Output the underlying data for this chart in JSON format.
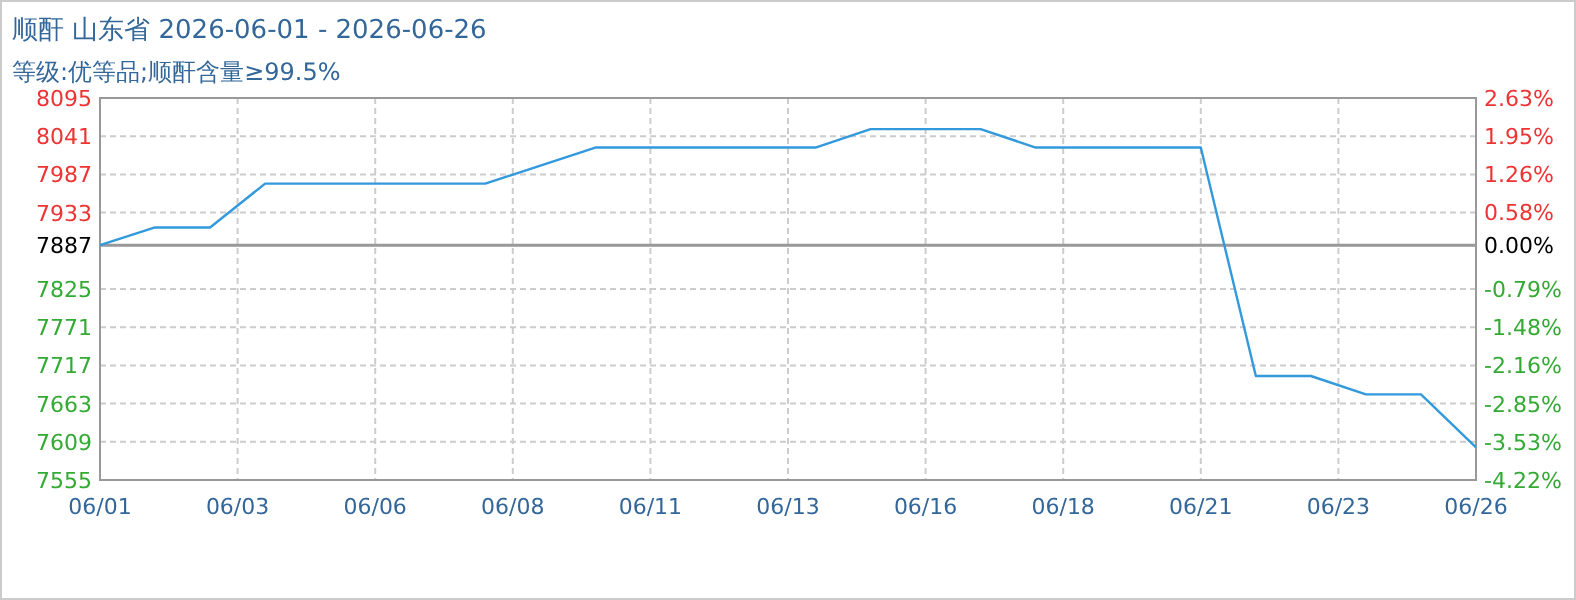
{
  "chart_data": {
    "type": "line",
    "title": "顺酐 山东省 2026-06-01 - 2026-06-26",
    "subtitle": "等级:优等品;顺酐含量≥99.5%",
    "x": [
      "2026-06-01",
      "2026-06-02",
      "2026-06-03",
      "2026-06-04",
      "2026-06-08",
      "2026-06-10",
      "2026-06-14",
      "2026-06-15",
      "2026-06-17",
      "2026-06-18",
      "2026-06-21",
      "2026-06-22",
      "2026-06-23",
      "2026-06-24",
      "2026-06-25",
      "2026-06-26"
    ],
    "series": [
      {
        "color": "#3399dd",
        "values": [
          7887,
          7912,
          7912,
          7974,
          7974,
          8025,
          8025,
          8051,
          8051,
          8025,
          8025,
          7702,
          7702,
          7676,
          7676,
          7601
        ]
      }
    ],
    "xlim": [
      "2026-06-01",
      "2026-06-26"
    ],
    "xticks": [
      {
        "value": "2026-06-01",
        "label": "06/01"
      },
      {
        "value": "2026-06-03T12:00",
        "label": "06/03"
      },
      {
        "value": "2026-06-06",
        "label": "06/06"
      },
      {
        "value": "2026-06-08T12:00",
        "label": "06/08"
      },
      {
        "value": "2026-06-11",
        "label": "06/11"
      },
      {
        "value": "2026-06-13T12:00",
        "label": "06/13"
      },
      {
        "value": "2026-06-16",
        "label": "06/16"
      },
      {
        "value": "2026-06-18T12:00",
        "label": "06/18"
      },
      {
        "value": "2026-06-21",
        "label": "06/21"
      },
      {
        "value": "2026-06-23T12:00",
        "label": "06/23"
      },
      {
        "value": "2026-06-26",
        "label": "06/26"
      }
    ],
    "ylim": [
      7555,
      8095
    ],
    "yticks": [
      7555,
      7609,
      7663,
      7717,
      7771,
      7825,
      7887,
      7933,
      7987,
      8041,
      8095
    ],
    "y2lim": [
      -4.22,
      2.63
    ],
    "y2ticks": [
      {
        "value": -4.22,
        "label": "-4.22%"
      },
      {
        "value": -3.53,
        "label": "-3.53%"
      },
      {
        "value": -2.85,
        "label": "-2.85%"
      },
      {
        "value": -2.16,
        "label": "-2.16%"
      },
      {
        "value": -1.48,
        "label": "-1.48%"
      },
      {
        "value": -0.79,
        "label": "-0.79%"
      },
      {
        "value": 0,
        "label": "0.00%"
      },
      {
        "value": 0.58,
        "label": "0.58%"
      },
      {
        "value": 1.26,
        "label": "1.26%"
      },
      {
        "value": 1.95,
        "label": "1.95%"
      },
      {
        "value": 2.63,
        "label": "2.63%"
      }
    ],
    "ref_lines": [
      {
        "axis": "y",
        "value": 7887,
        "color": "#999999"
      }
    ],
    "grid": true,
    "line_style": "solid",
    "marker": "none"
  }
}
